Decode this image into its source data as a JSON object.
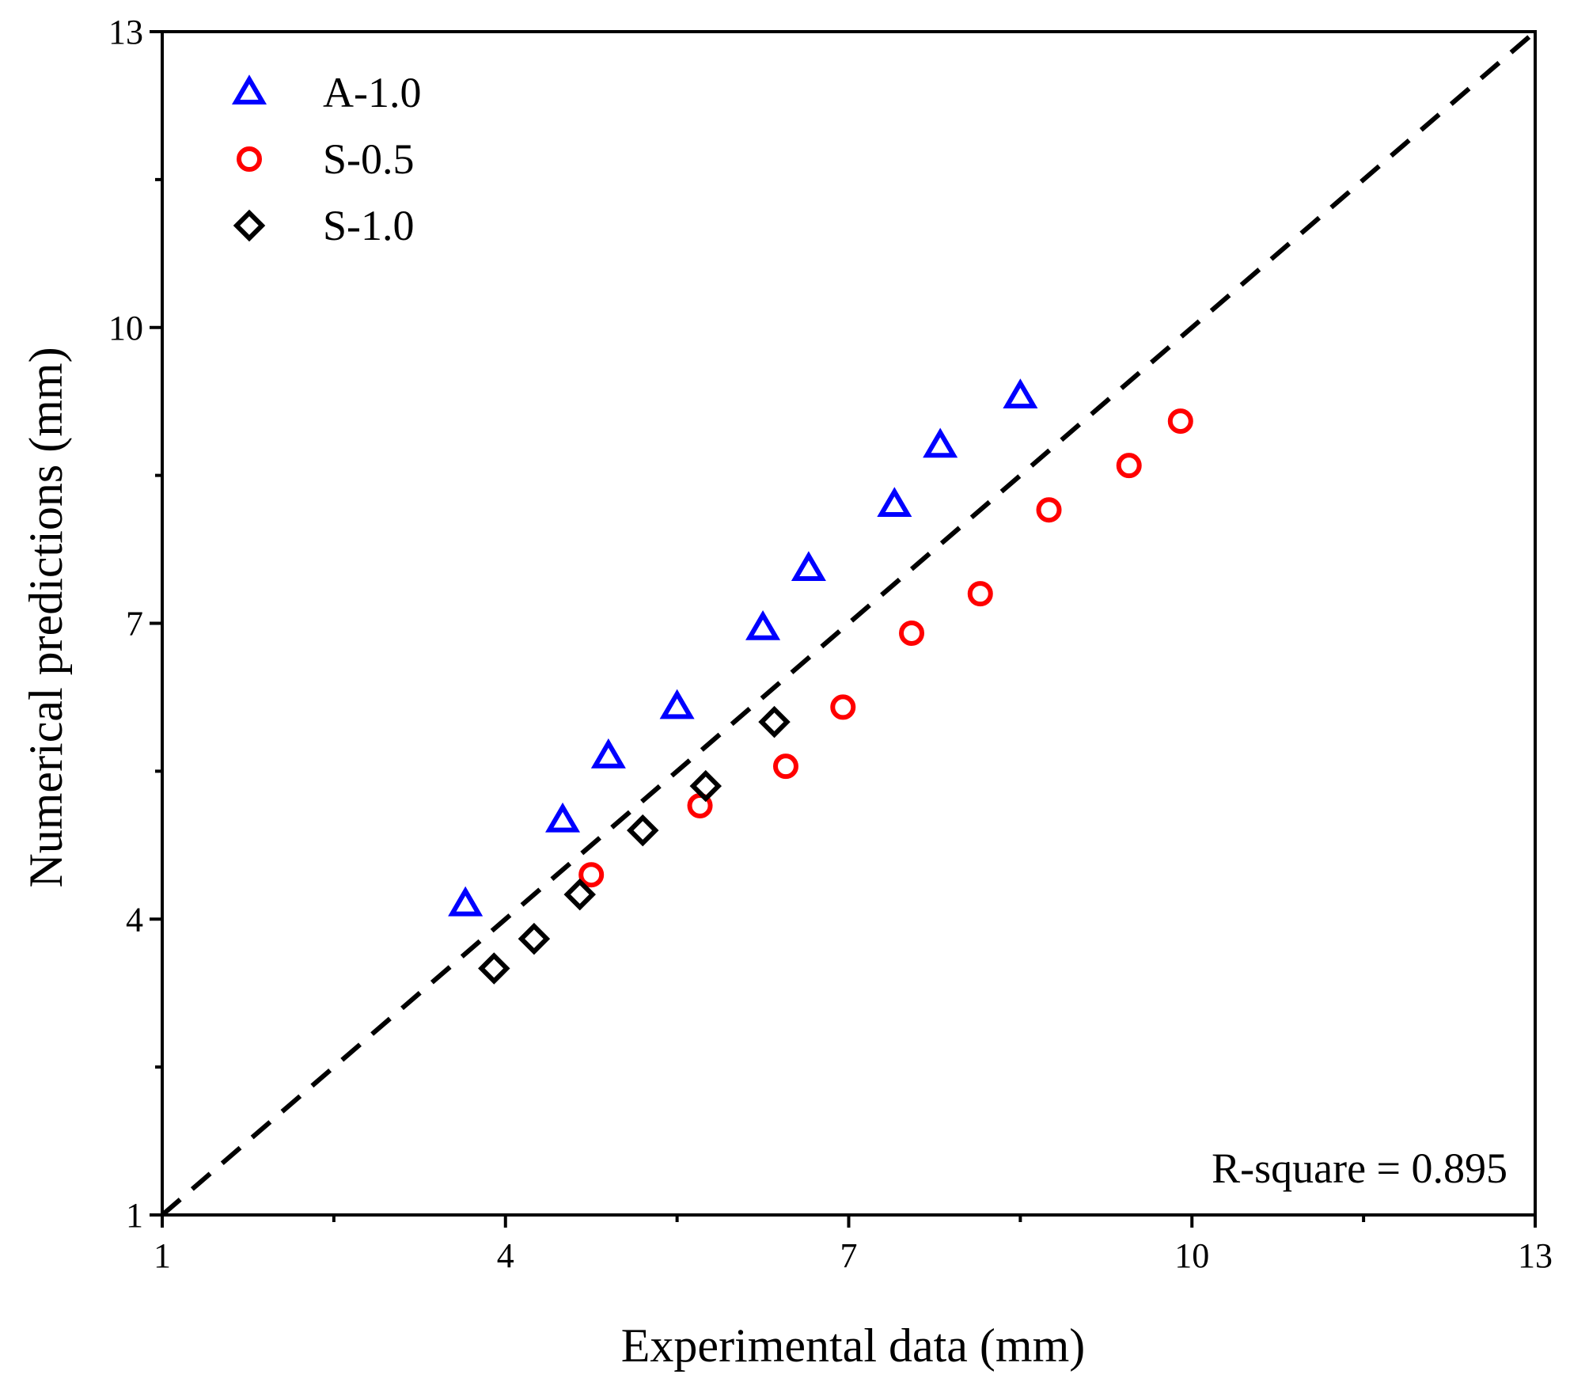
{
  "chart_data": {
    "type": "scatter",
    "title": "",
    "xlabel": "Experimental data (mm)",
    "ylabel": "Numerical predictions (mm)",
    "xlim": [
      1,
      13
    ],
    "ylim": [
      1,
      13
    ],
    "xticks": [
      1,
      4,
      7,
      10,
      13
    ],
    "yticks": [
      1,
      4,
      7,
      10,
      13
    ],
    "minor_tick_step": 1.5,
    "grid": false,
    "legend_position": "top-left",
    "reference_line": {
      "name": "y = x",
      "style": "dashed",
      "color": "#000000",
      "from": [
        1,
        1
      ],
      "to": [
        13,
        13
      ]
    },
    "annotation": "R-square = 0.895",
    "series": [
      {
        "name": "A-1.0",
        "marker": "triangle",
        "color": "#0000ff",
        "points": [
          [
            3.65,
            4.15
          ],
          [
            4.5,
            5.0
          ],
          [
            4.9,
            5.65
          ],
          [
            5.5,
            6.15
          ],
          [
            6.25,
            6.95
          ],
          [
            6.65,
            7.55
          ],
          [
            7.4,
            8.2
          ],
          [
            7.8,
            8.8
          ],
          [
            8.5,
            9.3
          ]
        ]
      },
      {
        "name": "S-0.5",
        "marker": "circle",
        "color": "#ff0000",
        "points": [
          [
            4.75,
            4.45
          ],
          [
            5.7,
            5.15
          ],
          [
            6.45,
            5.55
          ],
          [
            6.95,
            6.15
          ],
          [
            7.55,
            6.9
          ],
          [
            8.15,
            7.3
          ],
          [
            8.75,
            8.15
          ],
          [
            9.45,
            8.6
          ],
          [
            9.9,
            9.05
          ]
        ]
      },
      {
        "name": "S-1.0",
        "marker": "diamond",
        "color": "#000000",
        "points": [
          [
            3.9,
            3.5
          ],
          [
            4.25,
            3.8
          ],
          [
            4.65,
            4.25
          ],
          [
            5.2,
            4.9
          ],
          [
            5.75,
            5.35
          ],
          [
            6.35,
            6.0
          ]
        ]
      }
    ]
  }
}
